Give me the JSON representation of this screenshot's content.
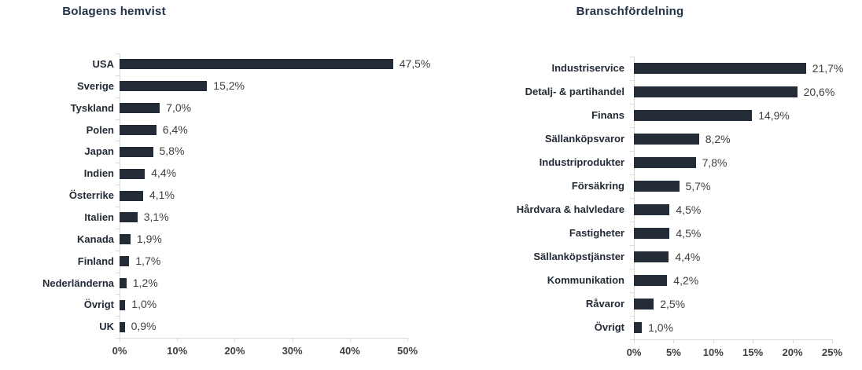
{
  "colors": {
    "bar": "#222b36",
    "title": "#223247",
    "category_label": "#222b36",
    "value_label": "#404040",
    "axis_line": "#d9d9d9",
    "tick_label": "#404040",
    "background": "#ffffff"
  },
  "chart_data": [
    {
      "type": "bar",
      "orientation": "horizontal",
      "title": "Bolagens hemvist",
      "categories": [
        "USA",
        "Sverige",
        "Tyskland",
        "Polen",
        "Japan",
        "Indien",
        "Österrike",
        "Italien",
        "Kanada",
        "Finland",
        "Nederländerna",
        "Övrigt",
        "UK"
      ],
      "values": [
        47.5,
        15.2,
        7.0,
        6.4,
        5.8,
        4.4,
        4.1,
        3.1,
        1.9,
        1.7,
        1.2,
        1.0,
        0.9
      ],
      "value_labels": [
        "47,5%",
        "15,2%",
        "7,0%",
        "6,4%",
        "5,8%",
        "4,4%",
        "4,1%",
        "3,1%",
        "1,9%",
        "1,7%",
        "1,2%",
        "1,0%",
        "0,9%"
      ],
      "x_ticks": [
        "0%",
        "10%",
        "20%",
        "30%",
        "40%",
        "50%"
      ],
      "xlim": [
        0,
        50
      ],
      "grid": false,
      "legend": "none"
    },
    {
      "type": "bar",
      "orientation": "horizontal",
      "title": "Branschfördelning",
      "categories": [
        "Industriservice",
        "Detalj- & partihandel",
        "Finans",
        "Sällanköpsvaror",
        "Industriprodukter",
        "Försäkring",
        "Hårdvara & halvledare",
        "Fastigheter",
        "Sällanköpstjänster",
        "Kommunikation",
        "Råvaror",
        "Övrigt"
      ],
      "values": [
        21.7,
        20.6,
        14.9,
        8.2,
        7.8,
        5.7,
        4.5,
        4.5,
        4.4,
        4.2,
        2.5,
        1.0
      ],
      "value_labels": [
        "21,7%",
        "20,6%",
        "14,9%",
        "8,2%",
        "7,8%",
        "5,7%",
        "4,5%",
        "4,5%",
        "4,4%",
        "4,2%",
        "2,5%",
        "1,0%"
      ],
      "x_ticks": [
        "0%",
        "5%",
        "10%",
        "15%",
        "20%",
        "25%"
      ],
      "xlim": [
        0,
        25
      ],
      "grid": false,
      "legend": "none"
    }
  ]
}
